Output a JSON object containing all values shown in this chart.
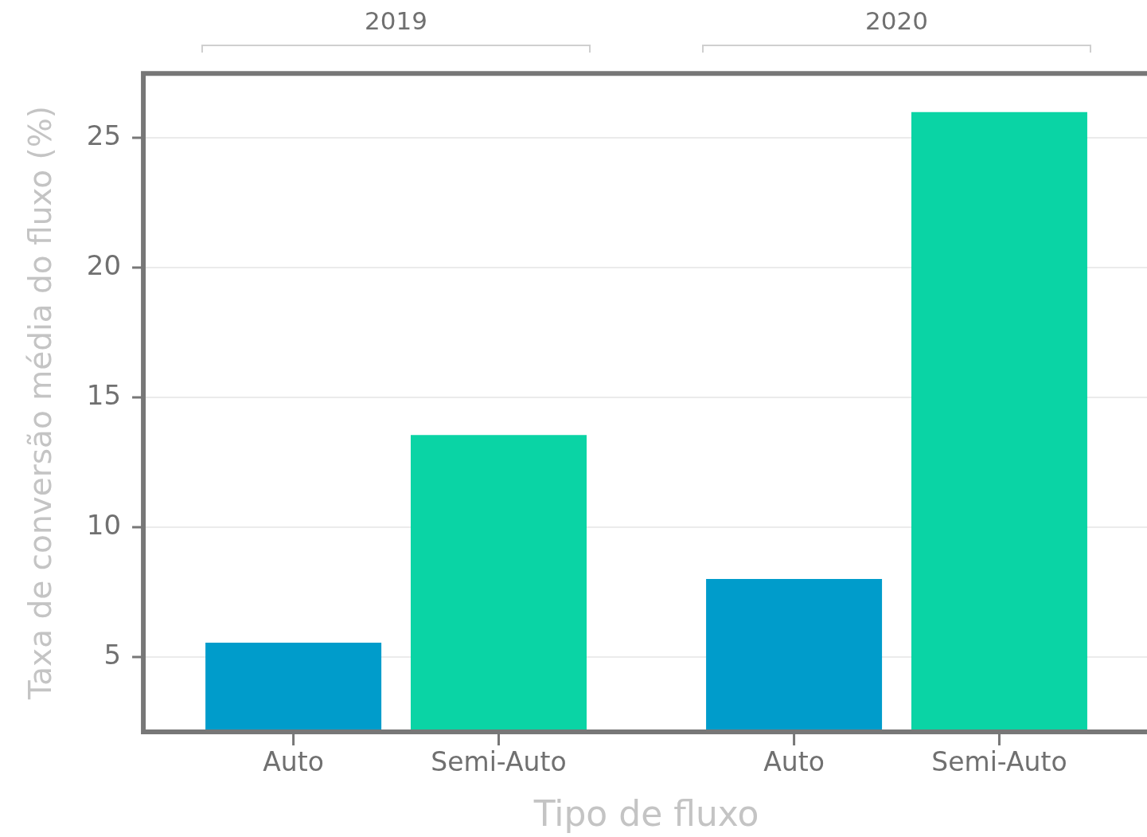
{
  "chart_data": {
    "type": "bar",
    "categories": [
      "2019",
      "2020"
    ],
    "series": [
      {
        "name": "Auto",
        "color": "#009ccb",
        "values": [
          5.55,
          8.0
        ]
      },
      {
        "name": "Semi-Auto",
        "color": "#0ad4a5",
        "values": [
          13.55,
          26.0
        ]
      }
    ],
    "xlabel": "Tipo de fluxo",
    "ylabel": "Taxa de conversão média do fluxo (%)",
    "ylim": [
      2.2,
      27.4
    ],
    "yticks": [
      5,
      10,
      15,
      20,
      25
    ],
    "grid": "y",
    "legend": false
  }
}
